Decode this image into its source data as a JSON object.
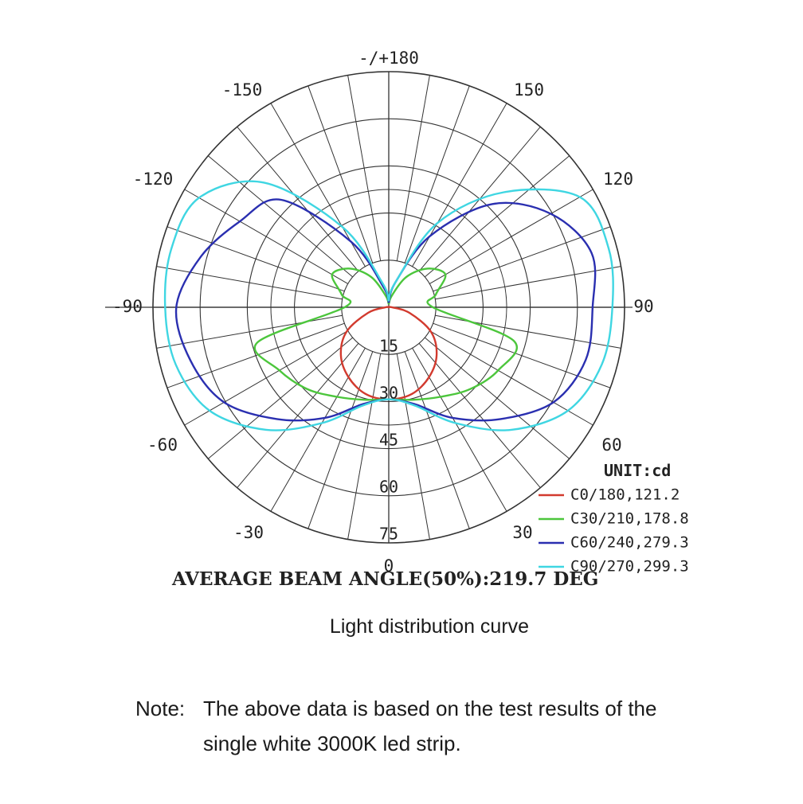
{
  "chart_data": {
    "type": "polar",
    "unit_label": "UNIT:cd",
    "angle_labels": [
      "-/+180",
      "150",
      "120",
      "90",
      "60",
      "30",
      "0",
      "-30",
      "-60",
      "-90",
      "-120",
      "-150"
    ],
    "radial_tick_labels": [
      "15",
      "30",
      "45",
      "60",
      "75"
    ],
    "beam_angle_text": "AVERAGE BEAM ANGLE(50%):219.7 DEG",
    "angles_deg": [
      0,
      15,
      30,
      45,
      60,
      75,
      90,
      105,
      120,
      135,
      150,
      165,
      180
    ],
    "series": [
      {
        "name": "C0/180,121.2",
        "color": "#d23a2e",
        "values_right": [
          121.2,
          118,
          106,
          89,
          64,
          28,
          4,
          0,
          0,
          0,
          0,
          0,
          0
        ],
        "values_left": [
          121.2,
          118,
          106,
          89,
          64,
          28,
          4,
          0,
          0,
          0,
          0,
          0,
          0
        ]
      },
      {
        "name": "C30/210,178.8",
        "color": "#4cc63c",
        "values_right": [
          121.2,
          126,
          136,
          152,
          166,
          170,
          58,
          64,
          86,
          72,
          46,
          16,
          4
        ],
        "values_left": [
          121.2,
          126,
          136,
          152,
          166,
          178.8,
          58,
          64,
          86,
          72,
          46,
          16,
          4
        ]
      },
      {
        "name": "C60/240,279.3",
        "color": "#2a2fb0",
        "values_right": [
          121.2,
          132,
          168,
          208,
          250,
          268,
          268,
          276,
          246,
          192,
          108,
          34,
          6
        ],
        "values_left": [
          121.2,
          132,
          168,
          208,
          250,
          270,
          279.3,
          256,
          226,
          200,
          100,
          28,
          6
        ]
      },
      {
        "name": "C90/270,299.3",
        "color": "#3fd6e2",
        "values_right": [
          121.2,
          134,
          176,
          228,
          272,
          290,
          294,
          299.3,
          290,
          214,
          128,
          34,
          8
        ],
        "values_left": [
          121.2,
          134,
          176,
          228,
          272,
          290,
          294,
          296,
          288,
          232,
          122,
          34,
          8
        ]
      }
    ]
  },
  "caption": "Light distribution curve",
  "note": {
    "label": "Note:",
    "line1": "The above data is based on the test results of the",
    "line2": "single white 3000K led strip."
  }
}
